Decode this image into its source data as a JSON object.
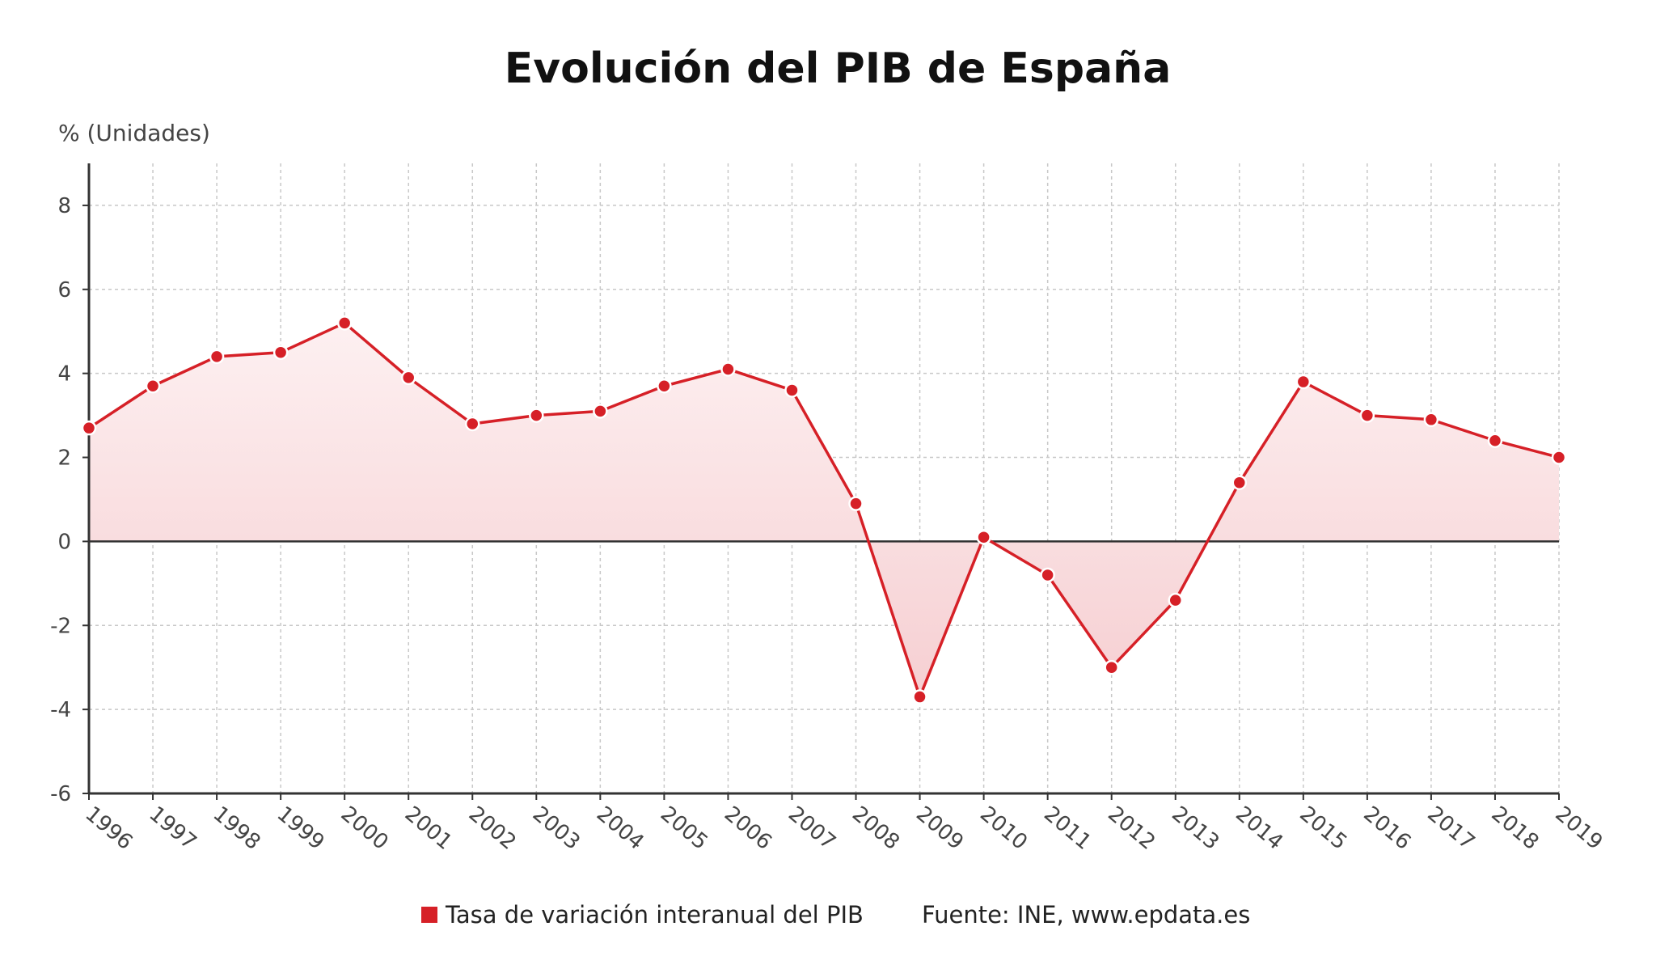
{
  "chart_data": {
    "type": "area",
    "title": "Evolución del PIB de España",
    "ylabel": "% (Unidades)",
    "xlabel": "",
    "ylim": [
      -6,
      9
    ],
    "yticks": [
      8,
      6,
      4,
      2,
      0,
      -2,
      -4,
      -6
    ],
    "grid": true,
    "categories": [
      "1996",
      "1997",
      "1998",
      "1999",
      "2000",
      "2001",
      "2002",
      "2003",
      "2004",
      "2005",
      "2006",
      "2007",
      "2008",
      "2009",
      "2010",
      "2011",
      "2012",
      "2013",
      "2014",
      "2015",
      "2016",
      "2017",
      "2018",
      "2019"
    ],
    "series": [
      {
        "name": "Tasa de variación interanual del PIB",
        "color": "#d62027",
        "values": [
          2.7,
          3.7,
          4.4,
          4.5,
          5.2,
          3.9,
          2.8,
          3.0,
          3.1,
          3.7,
          4.1,
          3.6,
          0.9,
          -3.7,
          0.1,
          -0.8,
          -3.0,
          -1.4,
          1.4,
          3.8,
          3.0,
          2.9,
          2.4,
          2.0
        ]
      }
    ],
    "legend_position": "bottom",
    "source": "Fuente: INE, www.epdata.es"
  },
  "colors": {
    "line": "#d62027",
    "fill": "#f8d2d4",
    "grid": "#c8c8c8",
    "axis": "#333333"
  }
}
